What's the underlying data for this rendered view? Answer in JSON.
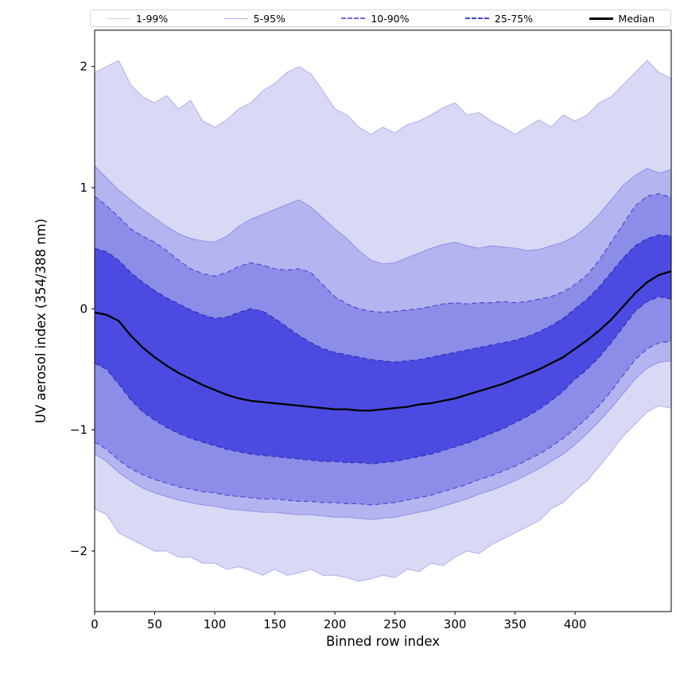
{
  "legend": {
    "entries": [
      {
        "label": "1-99%",
        "color": "#d2d2f3",
        "dashed": false,
        "weight": 1
      },
      {
        "label": "5-95%",
        "color": "#aeaeee",
        "dashed": false,
        "weight": 1
      },
      {
        "label": "10-90%",
        "color": "#6a6ae0",
        "dashed": true,
        "weight": 2
      },
      {
        "label": "25-75%",
        "color": "#4343cf",
        "dashed": true,
        "weight": 2
      },
      {
        "label": "Median",
        "color": "#000000",
        "dashed": false,
        "weight": 3
      }
    ]
  },
  "chart_data": {
    "type": "area",
    "title": "",
    "xlabel": "Binned row index",
    "ylabel": "UV aerosol index (354/388 nm)",
    "xlim": [
      0,
      480
    ],
    "ylim": [
      -2.5,
      2.3
    ],
    "xticks": [
      0,
      50,
      100,
      150,
      200,
      250,
      300,
      350,
      400
    ],
    "yticks": [
      -2,
      -1,
      0,
      1,
      2
    ],
    "grid": false,
    "legend_position": "top",
    "background": "#ffffff",
    "x": [
      0,
      10,
      20,
      30,
      40,
      50,
      60,
      70,
      80,
      90,
      100,
      110,
      120,
      130,
      140,
      150,
      160,
      170,
      180,
      190,
      200,
      210,
      220,
      230,
      240,
      250,
      260,
      270,
      280,
      290,
      300,
      310,
      320,
      330,
      340,
      350,
      360,
      370,
      380,
      390,
      400,
      410,
      420,
      430,
      440,
      450,
      460,
      470,
      480
    ],
    "bands": [
      {
        "name": "1-99%",
        "fill": "#d9d9f6",
        "edge": "#b4b4ee",
        "dashed": false,
        "upper": [
          1.95,
          2.0,
          2.05,
          1.85,
          1.75,
          1.7,
          1.76,
          1.65,
          1.72,
          1.55,
          1.5,
          1.56,
          1.65,
          1.7,
          1.8,
          1.86,
          1.95,
          2.0,
          1.94,
          1.8,
          1.65,
          1.6,
          1.5,
          1.44,
          1.5,
          1.45,
          1.52,
          1.55,
          1.6,
          1.66,
          1.7,
          1.6,
          1.62,
          1.55,
          1.5,
          1.44,
          1.5,
          1.56,
          1.5,
          1.6,
          1.55,
          1.6,
          1.7,
          1.75,
          1.85,
          1.95,
          2.05,
          1.95,
          1.9
        ],
        "lower": [
          -1.65,
          -1.7,
          -1.85,
          -1.9,
          -1.95,
          -2.0,
          -2.0,
          -2.05,
          -2.05,
          -2.1,
          -2.1,
          -2.15,
          -2.13,
          -2.16,
          -2.2,
          -2.15,
          -2.2,
          -2.18,
          -2.15,
          -2.2,
          -2.2,
          -2.22,
          -2.25,
          -2.23,
          -2.2,
          -2.22,
          -2.15,
          -2.17,
          -2.1,
          -2.12,
          -2.05,
          -2.0,
          -2.02,
          -1.95,
          -1.9,
          -1.85,
          -1.8,
          -1.75,
          -1.65,
          -1.6,
          -1.5,
          -1.42,
          -1.3,
          -1.18,
          -1.05,
          -0.95,
          -0.85,
          -0.8,
          -0.82
        ]
      },
      {
        "name": "5-95%",
        "fill": "#b4b4f0",
        "edge": "#9393ea",
        "dashed": false,
        "upper": [
          1.18,
          1.08,
          0.98,
          0.9,
          0.82,
          0.75,
          0.68,
          0.62,
          0.58,
          0.56,
          0.55,
          0.6,
          0.68,
          0.74,
          0.78,
          0.82,
          0.86,
          0.9,
          0.84,
          0.75,
          0.66,
          0.58,
          0.48,
          0.4,
          0.37,
          0.38,
          0.42,
          0.46,
          0.5,
          0.53,
          0.55,
          0.52,
          0.5,
          0.52,
          0.51,
          0.5,
          0.48,
          0.49,
          0.52,
          0.55,
          0.6,
          0.68,
          0.78,
          0.9,
          1.02,
          1.1,
          1.16,
          1.12,
          1.15
        ],
        "lower": [
          -1.2,
          -1.26,
          -1.35,
          -1.42,
          -1.48,
          -1.52,
          -1.55,
          -1.58,
          -1.6,
          -1.62,
          -1.63,
          -1.65,
          -1.66,
          -1.67,
          -1.68,
          -1.68,
          -1.69,
          -1.7,
          -1.7,
          -1.71,
          -1.72,
          -1.72,
          -1.73,
          -1.74,
          -1.73,
          -1.72,
          -1.7,
          -1.68,
          -1.66,
          -1.63,
          -1.6,
          -1.57,
          -1.53,
          -1.5,
          -1.46,
          -1.42,
          -1.37,
          -1.32,
          -1.26,
          -1.2,
          -1.12,
          -1.03,
          -0.93,
          -0.82,
          -0.7,
          -0.58,
          -0.49,
          -0.44,
          -0.43
        ]
      },
      {
        "name": "10-90%",
        "fill": "#8c8ce9",
        "edge": "#4646d4",
        "dashed": true,
        "upper": [
          0.93,
          0.85,
          0.76,
          0.66,
          0.6,
          0.55,
          0.48,
          0.4,
          0.33,
          0.29,
          0.27,
          0.3,
          0.35,
          0.38,
          0.36,
          0.33,
          0.32,
          0.33,
          0.3,
          0.2,
          0.1,
          0.04,
          0.0,
          -0.02,
          -0.03,
          -0.02,
          -0.01,
          0.0,
          0.02,
          0.04,
          0.05,
          0.04,
          0.05,
          0.05,
          0.06,
          0.05,
          0.06,
          0.08,
          0.1,
          0.14,
          0.2,
          0.28,
          0.4,
          0.55,
          0.7,
          0.85,
          0.93,
          0.95,
          0.92
        ],
        "lower": [
          -1.1,
          -1.16,
          -1.25,
          -1.32,
          -1.37,
          -1.41,
          -1.44,
          -1.47,
          -1.49,
          -1.51,
          -1.52,
          -1.54,
          -1.55,
          -1.56,
          -1.57,
          -1.57,
          -1.58,
          -1.59,
          -1.59,
          -1.6,
          -1.6,
          -1.61,
          -1.61,
          -1.62,
          -1.61,
          -1.6,
          -1.58,
          -1.56,
          -1.54,
          -1.51,
          -1.48,
          -1.45,
          -1.41,
          -1.38,
          -1.34,
          -1.3,
          -1.25,
          -1.2,
          -1.14,
          -1.07,
          -0.99,
          -0.9,
          -0.8,
          -0.68,
          -0.55,
          -0.42,
          -0.33,
          -0.28,
          -0.27
        ]
      },
      {
        "name": "25-75%",
        "fill": "#4b4be1",
        "edge": "#2b2bb4",
        "dashed": true,
        "upper": [
          0.5,
          0.47,
          0.4,
          0.3,
          0.22,
          0.15,
          0.09,
          0.04,
          -0.01,
          -0.05,
          -0.08,
          -0.07,
          -0.03,
          0.0,
          -0.02,
          -0.08,
          -0.15,
          -0.22,
          -0.28,
          -0.33,
          -0.36,
          -0.38,
          -0.4,
          -0.42,
          -0.43,
          -0.44,
          -0.43,
          -0.42,
          -0.4,
          -0.38,
          -0.36,
          -0.34,
          -0.32,
          -0.3,
          -0.28,
          -0.26,
          -0.23,
          -0.19,
          -0.14,
          -0.08,
          0.0,
          0.08,
          0.18,
          0.3,
          0.42,
          0.52,
          0.58,
          0.61,
          0.6
        ],
        "lower": [
          -0.45,
          -0.5,
          -0.62,
          -0.75,
          -0.85,
          -0.92,
          -0.98,
          -1.03,
          -1.07,
          -1.1,
          -1.13,
          -1.16,
          -1.18,
          -1.2,
          -1.21,
          -1.22,
          -1.23,
          -1.24,
          -1.25,
          -1.26,
          -1.26,
          -1.27,
          -1.27,
          -1.28,
          -1.27,
          -1.26,
          -1.24,
          -1.22,
          -1.2,
          -1.17,
          -1.14,
          -1.11,
          -1.07,
          -1.03,
          -0.99,
          -0.94,
          -0.89,
          -0.83,
          -0.76,
          -0.68,
          -0.58,
          -0.5,
          -0.4,
          -0.28,
          -0.15,
          -0.02,
          0.06,
          0.1,
          0.08
        ]
      }
    ],
    "median": {
      "name": "Median",
      "color": "#000000",
      "values": [
        -0.03,
        -0.05,
        -0.1,
        -0.22,
        -0.32,
        -0.4,
        -0.47,
        -0.53,
        -0.58,
        -0.63,
        -0.67,
        -0.71,
        -0.74,
        -0.76,
        -0.77,
        -0.78,
        -0.79,
        -0.8,
        -0.81,
        -0.82,
        -0.83,
        -0.83,
        -0.84,
        -0.84,
        -0.83,
        -0.82,
        -0.81,
        -0.79,
        -0.78,
        -0.76,
        -0.74,
        -0.71,
        -0.68,
        -0.65,
        -0.62,
        -0.58,
        -0.54,
        -0.5,
        -0.45,
        -0.4,
        -0.33,
        -0.26,
        -0.18,
        -0.09,
        0.02,
        0.13,
        0.22,
        0.28,
        0.31
      ]
    }
  }
}
